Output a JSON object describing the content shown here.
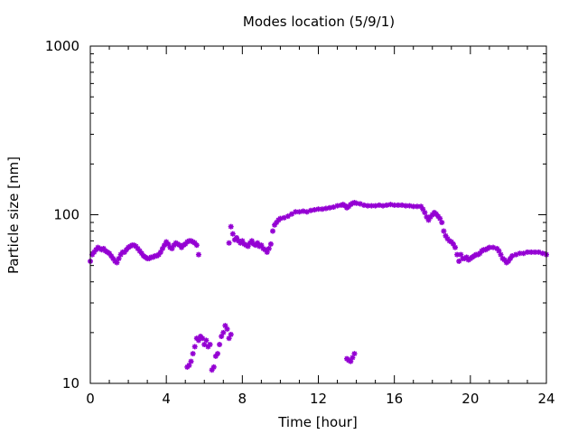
{
  "chart_data": {
    "type": "scatter",
    "title": "Modes location (5/9/1)",
    "xlabel": "Time [hour]",
    "ylabel": "Particle size [nm]",
    "xlim": [
      0,
      24
    ],
    "ylim": [
      10,
      1000
    ],
    "yscale": "log",
    "xticks": [
      0,
      4,
      8,
      12,
      16,
      20,
      24
    ],
    "xtick_labels": [
      "0",
      "4",
      "8",
      "12",
      "16",
      "20",
      "24"
    ],
    "yticks": [
      10,
      100,
      1000
    ],
    "ytick_labels": [
      "10",
      "100",
      "1000"
    ],
    "grid": false,
    "marker_color": "#9400d3",
    "series": [
      {
        "points": [
          [
            0.0,
            53
          ],
          [
            0.1,
            58
          ],
          [
            0.2,
            60
          ],
          [
            0.3,
            62
          ],
          [
            0.4,
            64
          ],
          [
            0.5,
            63
          ],
          [
            0.6,
            62
          ],
          [
            0.7,
            63
          ],
          [
            0.8,
            61
          ],
          [
            0.9,
            60
          ],
          [
            1.0,
            59
          ],
          [
            1.1,
            57
          ],
          [
            1.2,
            55
          ],
          [
            1.3,
            53
          ],
          [
            1.4,
            52
          ],
          [
            1.5,
            55
          ],
          [
            1.6,
            58
          ],
          [
            1.7,
            60
          ],
          [
            1.8,
            60
          ],
          [
            1.9,
            62
          ],
          [
            2.0,
            64
          ],
          [
            2.1,
            65
          ],
          [
            2.2,
            66
          ],
          [
            2.3,
            66
          ],
          [
            2.4,
            65
          ],
          [
            2.5,
            63
          ],
          [
            2.6,
            61
          ],
          [
            2.7,
            59
          ],
          [
            2.8,
            57
          ],
          [
            2.9,
            56
          ],
          [
            3.0,
            55
          ],
          [
            3.1,
            55
          ],
          [
            3.2,
            56
          ],
          [
            3.3,
            56
          ],
          [
            3.4,
            57
          ],
          [
            3.5,
            57
          ],
          [
            3.6,
            58
          ],
          [
            3.7,
            60
          ],
          [
            3.8,
            63
          ],
          [
            3.9,
            66
          ],
          [
            4.0,
            69
          ],
          [
            4.1,
            67
          ],
          [
            4.2,
            64
          ],
          [
            4.3,
            63
          ],
          [
            4.4,
            66
          ],
          [
            4.5,
            68
          ],
          [
            4.6,
            67
          ],
          [
            4.7,
            66
          ],
          [
            4.8,
            64
          ],
          [
            4.9,
            66
          ],
          [
            5.0,
            67
          ],
          [
            5.1,
            69
          ],
          [
            5.2,
            70
          ],
          [
            5.3,
            70
          ],
          [
            5.4,
            69
          ],
          [
            5.5,
            68
          ],
          [
            5.6,
            66
          ],
          [
            5.7,
            58
          ],
          [
            7.3,
            68
          ],
          [
            7.4,
            85
          ],
          [
            7.5,
            77
          ],
          [
            7.6,
            71
          ],
          [
            7.7,
            73
          ],
          [
            7.8,
            70
          ],
          [
            7.9,
            68
          ],
          [
            8.0,
            70
          ],
          [
            8.1,
            67
          ],
          [
            8.2,
            66
          ],
          [
            8.3,
            65
          ],
          [
            8.4,
            68
          ],
          [
            8.5,
            70
          ],
          [
            8.6,
            67
          ],
          [
            8.7,
            66
          ],
          [
            8.8,
            68
          ],
          [
            8.9,
            65
          ],
          [
            9.0,
            66
          ],
          [
            9.1,
            63
          ],
          [
            9.2,
            62
          ],
          [
            9.3,
            60
          ],
          [
            9.4,
            63
          ],
          [
            9.5,
            67
          ],
          [
            9.6,
            80
          ],
          [
            9.7,
            87
          ],
          [
            9.8,
            90
          ],
          [
            9.9,
            93
          ],
          [
            10.0,
            95
          ],
          [
            10.2,
            96
          ],
          [
            10.4,
            98
          ],
          [
            10.6,
            101
          ],
          [
            10.8,
            104
          ],
          [
            11.0,
            104
          ],
          [
            11.2,
            105
          ],
          [
            11.4,
            104
          ],
          [
            11.6,
            106
          ],
          [
            11.8,
            107
          ],
          [
            12.0,
            108
          ],
          [
            12.2,
            108
          ],
          [
            12.4,
            109
          ],
          [
            12.6,
            110
          ],
          [
            12.8,
            111
          ],
          [
            13.0,
            113
          ],
          [
            13.2,
            114
          ],
          [
            13.3,
            115
          ],
          [
            13.4,
            113
          ],
          [
            13.5,
            110
          ],
          [
            13.6,
            112
          ],
          [
            13.7,
            115
          ],
          [
            13.8,
            117
          ],
          [
            13.9,
            118
          ],
          [
            14.0,
            117
          ],
          [
            14.2,
            116
          ],
          [
            14.4,
            114
          ],
          [
            14.6,
            113
          ],
          [
            14.8,
            113
          ],
          [
            15.0,
            113
          ],
          [
            15.2,
            114
          ],
          [
            15.4,
            113
          ],
          [
            15.6,
            114
          ],
          [
            15.8,
            115
          ],
          [
            16.0,
            114
          ],
          [
            16.2,
            114
          ],
          [
            16.4,
            114
          ],
          [
            16.6,
            113
          ],
          [
            16.8,
            113
          ],
          [
            17.0,
            112
          ],
          [
            17.2,
            112
          ],
          [
            17.4,
            112
          ],
          [
            17.5,
            108
          ],
          [
            17.6,
            103
          ],
          [
            17.7,
            97
          ],
          [
            17.8,
            93
          ],
          [
            17.9,
            97
          ],
          [
            18.0,
            100
          ],
          [
            18.1,
            103
          ],
          [
            18.2,
            101
          ],
          [
            18.3,
            98
          ],
          [
            18.4,
            95
          ],
          [
            18.5,
            90
          ],
          [
            18.6,
            80
          ],
          [
            18.7,
            75
          ],
          [
            18.8,
            72
          ],
          [
            18.9,
            70
          ],
          [
            19.0,
            69
          ],
          [
            19.1,
            67
          ],
          [
            19.2,
            64
          ],
          [
            19.3,
            58
          ],
          [
            19.4,
            53
          ],
          [
            19.5,
            58
          ],
          [
            19.6,
            55
          ],
          [
            19.7,
            55
          ],
          [
            19.8,
            56
          ],
          [
            19.9,
            54
          ],
          [
            20.0,
            55
          ],
          [
            20.1,
            56
          ],
          [
            20.2,
            57
          ],
          [
            20.3,
            58
          ],
          [
            20.4,
            58
          ],
          [
            20.5,
            59
          ],
          [
            20.6,
            61
          ],
          [
            20.7,
            62
          ],
          [
            20.8,
            62
          ],
          [
            20.9,
            63
          ],
          [
            21.0,
            64
          ],
          [
            21.2,
            64
          ],
          [
            21.4,
            63
          ],
          [
            21.5,
            61
          ],
          [
            21.6,
            58
          ],
          [
            21.7,
            55
          ],
          [
            21.8,
            54
          ],
          [
            21.9,
            52
          ],
          [
            22.0,
            53
          ],
          [
            22.1,
            55
          ],
          [
            22.2,
            57
          ],
          [
            22.4,
            58
          ],
          [
            22.6,
            59
          ],
          [
            22.8,
            59
          ],
          [
            23.0,
            60
          ],
          [
            23.2,
            60
          ],
          [
            23.4,
            60
          ],
          [
            23.6,
            60
          ],
          [
            23.8,
            59
          ],
          [
            24.0,
            58
          ]
        ]
      },
      {
        "points": [
          [
            5.1,
            12.5
          ],
          [
            5.2,
            12.8
          ],
          [
            5.3,
            13.5
          ],
          [
            5.4,
            15
          ],
          [
            5.5,
            16.5
          ],
          [
            5.6,
            18.5
          ],
          [
            5.7,
            18
          ],
          [
            5.8,
            19
          ],
          [
            5.9,
            18.5
          ],
          [
            6.0,
            17
          ],
          [
            6.1,
            18
          ],
          [
            6.2,
            16.5
          ],
          [
            6.3,
            17
          ],
          [
            6.4,
            12
          ],
          [
            6.5,
            12.5
          ],
          [
            6.6,
            14.5
          ],
          [
            6.7,
            15
          ],
          [
            6.8,
            17
          ],
          [
            6.9,
            19
          ],
          [
            7.0,
            20
          ],
          [
            7.1,
            22
          ],
          [
            7.2,
            21
          ],
          [
            7.3,
            18.5
          ],
          [
            7.4,
            19.5
          ],
          [
            13.5,
            14
          ],
          [
            13.6,
            13.7
          ],
          [
            13.7,
            13.5
          ],
          [
            13.8,
            14.2
          ],
          [
            13.9,
            15
          ]
        ]
      }
    ]
  }
}
